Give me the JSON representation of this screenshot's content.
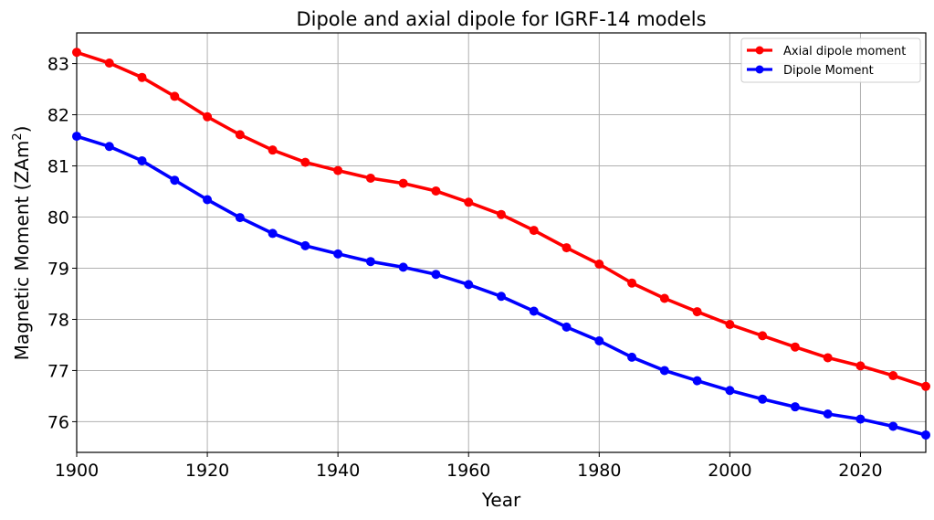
{
  "chart_data": {
    "type": "line",
    "title": "Dipole and axial dipole for IGRF-14 models",
    "xlabel": "Year",
    "ylabel": "Magnetic Moment (ZAm",
    "ylabel_sup": "2",
    "ylabel_close": ")",
    "xlim": [
      1900,
      2030
    ],
    "ylim": [
      75.4,
      83.6
    ],
    "grid": true,
    "legend_position": "top-right",
    "x_ticks": [
      "1900",
      "1920",
      "1940",
      "1960",
      "1980",
      "2000",
      "2020"
    ],
    "y_ticks": [
      "76",
      "77",
      "78",
      "79",
      "80",
      "81",
      "82",
      "83"
    ],
    "x": [
      1900,
      1905,
      1910,
      1915,
      1920,
      1925,
      1930,
      1935,
      1940,
      1945,
      1950,
      1955,
      1960,
      1965,
      1970,
      1975,
      1980,
      1985,
      1990,
      1995,
      2000,
      2005,
      2010,
      2015,
      2020,
      2025,
      2030
    ],
    "series": [
      {
        "name": "Axial dipole moment",
        "color": "#ff0000",
        "values": [
          83.22,
          83.01,
          82.73,
          82.36,
          81.96,
          81.61,
          81.31,
          81.07,
          80.91,
          80.76,
          80.66,
          80.51,
          80.29,
          80.05,
          79.74,
          79.4,
          79.08,
          78.71,
          78.41,
          78.15,
          77.9,
          77.68,
          77.46,
          77.25,
          77.09,
          76.9,
          76.69
        ]
      },
      {
        "name": "Dipole Moment",
        "color": "#0000ff",
        "values": [
          81.58,
          81.38,
          81.1,
          80.72,
          80.34,
          79.99,
          79.68,
          79.44,
          79.28,
          79.13,
          79.02,
          78.88,
          78.68,
          78.45,
          78.16,
          77.85,
          77.58,
          77.26,
          77.0,
          76.8,
          76.61,
          76.44,
          76.29,
          76.15,
          76.05,
          75.91,
          75.74
        ]
      }
    ]
  }
}
